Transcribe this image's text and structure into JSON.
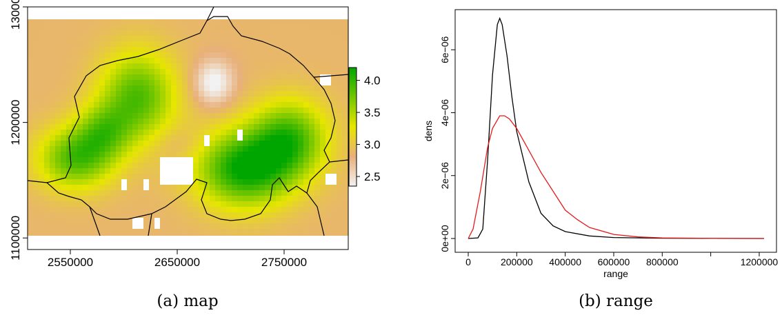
{
  "colors": {
    "low": "#f2f2f2",
    "mid_low": "#e8b07a",
    "mid": "#e6e600",
    "high": "#00a600",
    "density_black": "#000000",
    "density_red": "#e41a1c",
    "border": "#000000"
  },
  "chart_data": [
    {
      "type": "heatmap",
      "caption": "(a) map",
      "xlim": [
        2510000,
        2810000
      ],
      "ylim": [
        1090000,
        1300000
      ],
      "x_ticks": [
        2550000,
        2650000,
        2750000
      ],
      "x_tick_labels": [
        "2550000",
        "2650000",
        "2750000"
      ],
      "y_ticks": [
        1100000,
        1200000,
        1300000
      ],
      "y_tick_labels": [
        "1100000",
        "1200000",
        "1300000"
      ],
      "legend": {
        "position": "right",
        "range": [
          2.35,
          4.2
        ],
        "ticks": [
          2.5,
          3.0,
          3.5,
          4.0
        ],
        "tick_labels": [
          "2.5",
          "3.0",
          "3.5",
          "4.0"
        ]
      }
    },
    {
      "type": "line",
      "caption": "(b) range",
      "xlabel": "range",
      "ylabel": "dens",
      "xlim": [
        0,
        1220000
      ],
      "ylim": [
        0,
        7.1e-06
      ],
      "x_ticks": [
        0,
        200000,
        400000,
        600000,
        800000,
        1000000,
        1200000
      ],
      "x_tick_labels": [
        "0",
        "200000",
        "400000",
        "600000",
        "800000",
        "",
        "1200000"
      ],
      "y_ticks": [
        0,
        2e-06,
        4e-06,
        6e-06
      ],
      "y_tick_labels": [
        "0e+00",
        "2e−06",
        "4e−06",
        "6e−06"
      ],
      "series": [
        {
          "color": "#000000",
          "x": [
            0,
            40000,
            60000,
            80000,
            100000,
            120000,
            130000,
            140000,
            160000,
            180000,
            200000,
            250000,
            300000,
            350000,
            400000,
            500000,
            600000,
            800000,
            1000000,
            1220000
          ],
          "y": [
            0,
            2e-08,
            3e-07,
            2.5e-06,
            5.2e-06,
            6.8e-06,
            7e-06,
            6.8e-06,
            5.8e-06,
            4.5e-06,
            3.4e-06,
            1.8e-06,
            8e-07,
            4e-07,
            2.2e-07,
            8e-08,
            3e-08,
            8e-09,
            2e-09,
            0
          ]
        },
        {
          "color": "#e41a1c",
          "x": [
            0,
            20000,
            50000,
            80000,
            100000,
            130000,
            150000,
            170000,
            200000,
            250000,
            300000,
            350000,
            400000,
            450000,
            500000,
            600000,
            700000,
            800000,
            1000000,
            1220000
          ],
          "y": [
            0,
            3e-07,
            1.5e-06,
            2.9e-06,
            3.5e-06,
            3.9e-06,
            3.9e-06,
            3.8e-06,
            3.5e-06,
            2.8e-06,
            2.1e-06,
            1.5e-06,
            9e-07,
            6e-07,
            3.5e-07,
            1.3e-07,
            5e-08,
            2e-08,
            4e-09,
            0
          ]
        }
      ]
    }
  ]
}
